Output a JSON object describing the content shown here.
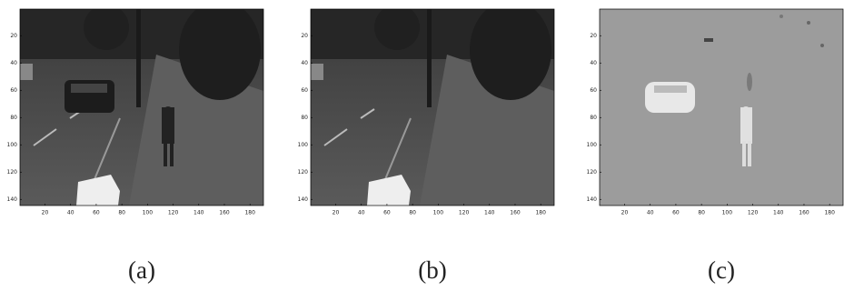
{
  "panels": [
    {
      "caption": "(a)",
      "xlim": [
        0.5,
        190.5
      ],
      "ylim": [
        0.5,
        144.5
      ],
      "xticks": [
        20,
        40,
        60,
        80,
        100,
        120,
        140,
        160,
        180
      ],
      "yticks": [
        20,
        40,
        60,
        80,
        100,
        120,
        140
      ]
    },
    {
      "caption": "(b)",
      "xlim": [
        0.5,
        190.5
      ],
      "ylim": [
        0.5,
        144.5
      ],
      "xticks": [
        20,
        40,
        60,
        80,
        100,
        120,
        140,
        160,
        180
      ],
      "yticks": [
        20,
        40,
        60,
        80,
        100,
        120,
        140
      ]
    },
    {
      "caption": "(c)",
      "xlim": [
        0.5,
        190.5
      ],
      "ylim": [
        0.5,
        144.5
      ],
      "xticks": [
        20,
        40,
        60,
        80,
        100,
        120,
        140,
        160,
        180
      ],
      "yticks": [
        20,
        40,
        60,
        80,
        100,
        120,
        140
      ]
    }
  ]
}
